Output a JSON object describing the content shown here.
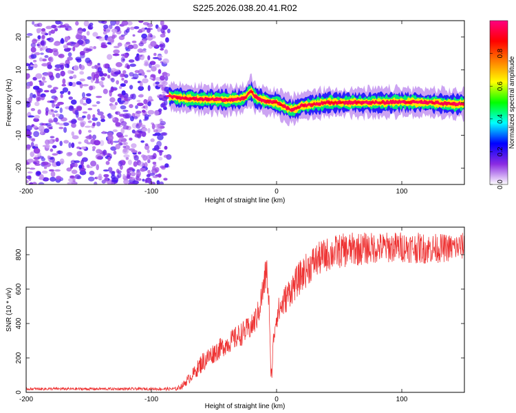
{
  "figure": {
    "title": "S225.2026.038.20.41.R02"
  },
  "chart_data": [
    {
      "type": "heatmap",
      "xlabel": "Height of straight line (km)",
      "ylabel": "Frequency (Hz)",
      "xlim": [
        -200,
        150
      ],
      "ylim": [
        -25,
        25
      ],
      "xticks": [
        -200,
        -100,
        0,
        100
      ],
      "yticks": [
        -20,
        -10,
        0,
        10,
        20
      ],
      "colorbar": {
        "label": "Normalized spectral amplitude",
        "range": [
          0,
          1
        ],
        "ticks": [
          0.0,
          0.2,
          0.4,
          0.6,
          0.8
        ],
        "colormap": [
          "#ffffff",
          "#8a2be2",
          "#0000ff",
          "#00ffff",
          "#00ff00",
          "#ffff00",
          "#ff8000",
          "#ff0000",
          "#ff0080"
        ]
      },
      "noise_region": {
        "x": [
          -200,
          -86
        ],
        "y": [
          -25,
          25
        ],
        "amplitude_range": [
          0.05,
          0.2
        ]
      },
      "signal_ridge": {
        "x": [
          -86,
          -80,
          -70,
          -60,
          -50,
          -40,
          -30,
          -25,
          -22,
          -20,
          -18,
          -15,
          -10,
          -5,
          0,
          5,
          10,
          15,
          20,
          30,
          40,
          50,
          60,
          80,
          100,
          120,
          140,
          150
        ],
        "y": [
          2,
          1.5,
          1.2,
          1,
          1,
          0.8,
          1,
          1.5,
          3,
          3.5,
          2,
          1.2,
          0.6,
          0.2,
          0,
          -1,
          -2,
          -2,
          -1,
          -0.5,
          0,
          0,
          0,
          0,
          0.2,
          0,
          -0.5,
          -0.3
        ],
        "peak_amplitude": 0.95
      }
    },
    {
      "type": "line",
      "xlabel": "Height of straight line (km)",
      "ylabel": "SNR (10 * v/v)",
      "xlim": [
        -200,
        150
      ],
      "ylim": [
        0,
        960
      ],
      "xticks": [
        -200,
        -100,
        0,
        100
      ],
      "yticks": [
        0,
        200,
        400,
        600,
        800
      ],
      "color": "#ee3333",
      "series": [
        {
          "x": [
            -200,
            -150,
            -100,
            -80,
            -75,
            -70,
            -65,
            -60,
            -50,
            -40,
            -30,
            -20,
            -15,
            -10,
            -8,
            -6,
            -5,
            -4,
            -2,
            0,
            10,
            20,
            30,
            40,
            50,
            60,
            80,
            100,
            120,
            140,
            150
          ],
          "y": [
            20,
            20,
            20,
            20,
            40,
            80,
            120,
            170,
            230,
            280,
            330,
            380,
            450,
            620,
            720,
            500,
            200,
            100,
            350,
            450,
            580,
            680,
            760,
            800,
            820,
            830,
            840,
            845,
            835,
            840,
            850
          ],
          "noise_amplitude": [
            8,
            8,
            8,
            10,
            20,
            30,
            40,
            60,
            60,
            60,
            70,
            70,
            80,
            100,
            100,
            80,
            60,
            60,
            80,
            80,
            90,
            100,
            100,
            100,
            100,
            100,
            90,
            90,
            90,
            80,
            80
          ]
        }
      ]
    }
  ]
}
